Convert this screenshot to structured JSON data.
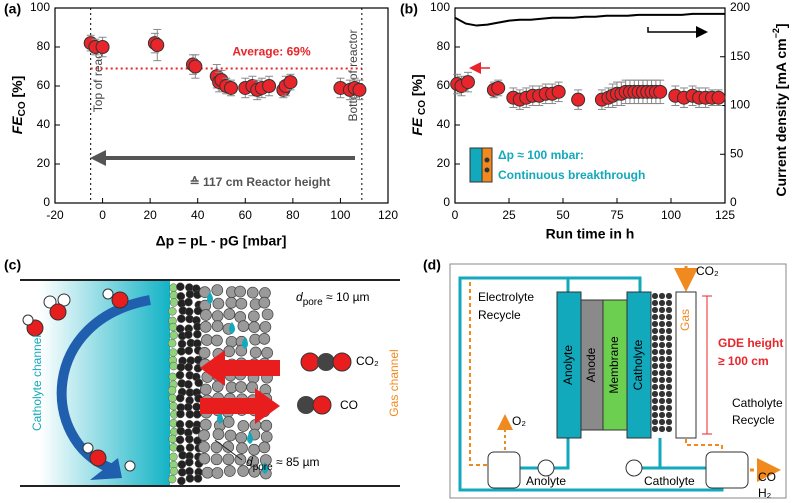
{
  "chart_data": [
    {
      "type": "scatter",
      "panel": "(a)",
      "xlabel": "Δp = pL - pG [mbar]",
      "ylabel": [
        "FE",
        "CO",
        " [%]"
      ],
      "x": [
        -5,
        -3,
        0,
        22,
        23,
        38,
        39,
        48,
        49,
        50,
        52,
        54,
        60,
        63,
        65,
        67,
        70,
        76,
        77,
        79,
        100,
        104,
        106,
        108
      ],
      "values": [
        82,
        80,
        80,
        82,
        81,
        71,
        70,
        65,
        62,
        63,
        60,
        59,
        59,
        60,
        58,
        59,
        60,
        58,
        60,
        62,
        59,
        58,
        59,
        58
      ],
      "errors": [
        4,
        4,
        5,
        5,
        8,
        5,
        6,
        6,
        5,
        5,
        4,
        4,
        5,
        5,
        5,
        5,
        5,
        4,
        5,
        4,
        5,
        5,
        5,
        5
      ],
      "color": "#e8252a",
      "xlim": [
        -20,
        120
      ],
      "xticks": [
        -20,
        0,
        20,
        40,
        60,
        80,
        100,
        120
      ],
      "ylim": [
        0,
        100
      ],
      "yticks": [
        0,
        20,
        40,
        60,
        80,
        100
      ],
      "hlines": [
        {
          "value": 69,
          "label": "Average: 69%",
          "color": "#e8252a"
        }
      ],
      "vlines": [
        {
          "value": -5,
          "label": "Top of reactor"
        },
        {
          "value": 109,
          "label": "Bottom of reactor"
        }
      ],
      "annotation": "≙ 117 cm Reactor height"
    },
    {
      "type": "scatter",
      "panel": "(b)",
      "xlabel": "Run time in h",
      "ylabel": [
        "FE",
        " CO",
        " [%]"
      ],
      "y2label": [
        "Current density [mA cm",
        "−2",
        "]"
      ],
      "xlim": [
        0,
        125
      ],
      "xticks": [
        0,
        25,
        50,
        75,
        100,
        125
      ],
      "ylim": [
        0,
        100
      ],
      "yticks": [
        0,
        20,
        40,
        60,
        80,
        100
      ],
      "y2lim": [
        0,
        200
      ],
      "y2ticks": [
        0,
        50,
        100,
        150,
        200
      ],
      "series": [
        {
          "color": "#e8252a",
          "x": [
            1,
            3,
            6,
            18,
            20,
            27,
            30,
            33,
            36,
            39,
            42,
            45,
            48,
            57,
            68,
            71,
            73,
            75,
            77,
            79,
            81,
            83,
            85,
            87,
            89,
            91,
            93,
            95,
            102,
            106,
            110,
            113,
            116,
            119,
            122
          ],
          "values": [
            61,
            60,
            62,
            58,
            59,
            54,
            53,
            54,
            55,
            55,
            56,
            56,
            57,
            53,
            53,
            54,
            55,
            56,
            56,
            57,
            57,
            57,
            57,
            57,
            57,
            57,
            57,
            57,
            55,
            54,
            55,
            54,
            54,
            54,
            54
          ],
          "errors": [
            5,
            5,
            5,
            4,
            4,
            5,
            5,
            5,
            5,
            5,
            5,
            5,
            5,
            5,
            5,
            5,
            6,
            6,
            6,
            6,
            6,
            6,
            6,
            6,
            6,
            6,
            6,
            6,
            5,
            5,
            5,
            5,
            5,
            4,
            4
          ]
        },
        {
          "color": "#000000",
          "axis": "y2",
          "style": "line",
          "x": [
            0,
            5,
            10,
            15,
            20,
            25,
            30,
            35,
            40,
            45,
            50,
            55,
            60,
            65,
            70,
            75,
            80,
            85,
            90,
            95,
            100,
            105,
            110,
            115,
            120,
            125
          ],
          "values": [
            190,
            184,
            182,
            183,
            185,
            187,
            188,
            188,
            189,
            190,
            190,
            190,
            191,
            191,
            192,
            192,
            192,
            193,
            193,
            193,
            193,
            193,
            194,
            194,
            194,
            194
          ]
        }
      ],
      "annotations": [
        "Δp ≈ 100 mbar:",
        "Continuous breakthrough"
      ]
    }
  ],
  "diagram_c": {
    "panel": "(c)",
    "left_label": "Catholyte channel",
    "right_label": "Gas channel",
    "pore_small": [
      "d",
      "pore",
      " ≈ 10 µm"
    ],
    "pore_large": [
      "d",
      "pore",
      " ≈ 85 µm"
    ],
    "gas_in": "CO₂",
    "gas_out": "CO"
  },
  "diagram_d": {
    "panel": "(d)",
    "recycle_left": [
      "Electrolyte",
      "Recycle"
    ],
    "co2_in": "CO₂",
    "layers": [
      "Anolyte",
      "Anode",
      "Membrane",
      "Catholyte",
      "Gas"
    ],
    "gde": [
      "GDE height",
      "≥ 100 cm"
    ],
    "recycle_right": [
      "Catholyte",
      "Recycle"
    ],
    "o2": "O₂",
    "anolyte_tank": "Anolyte",
    "catholyte_tank": "Catholyte",
    "products": [
      "CO",
      "H₂"
    ]
  }
}
